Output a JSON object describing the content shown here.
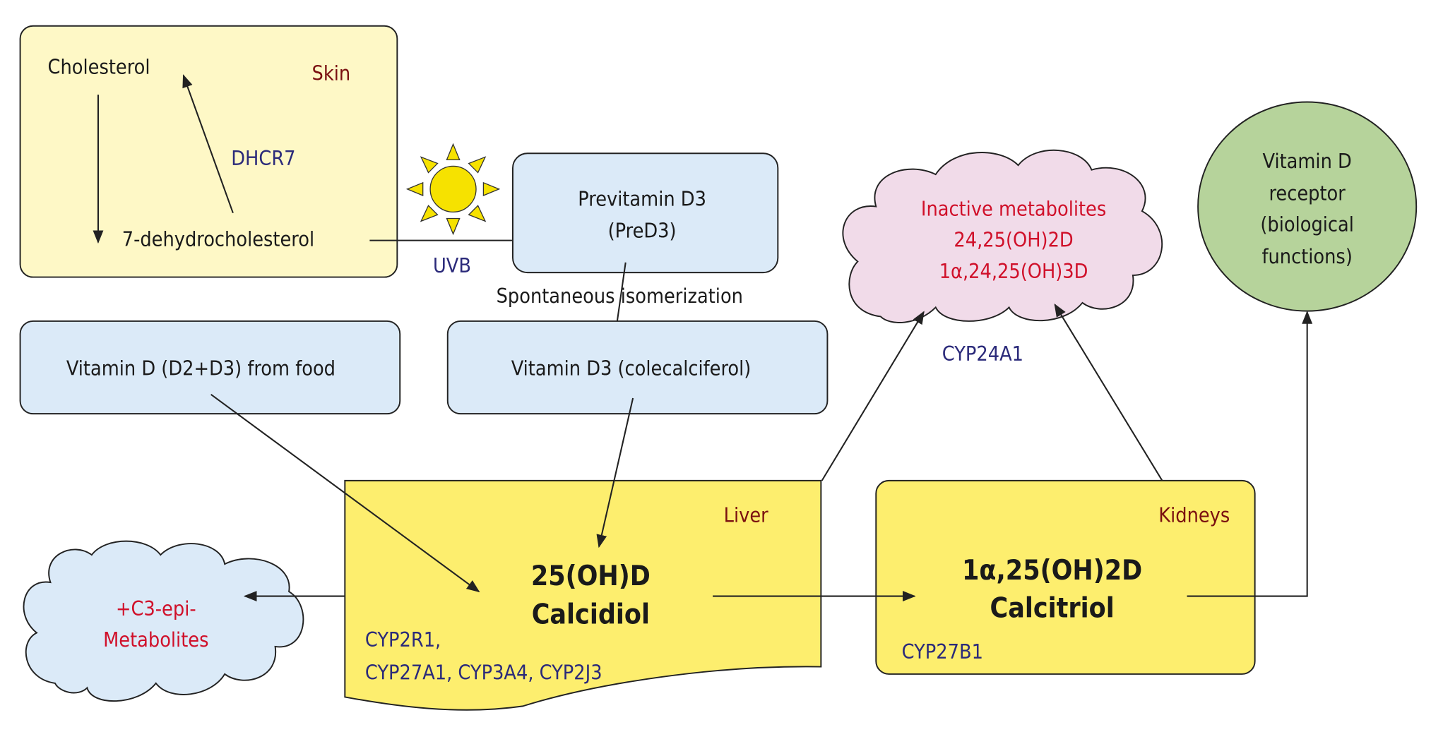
{
  "colors": {
    "skin_box": "#fef8c6",
    "blue_box": "#dbeaf8",
    "yellow_box": "#fdee6e",
    "pink_cloud": "#f1dbe9",
    "green_circle": "#b6d39b",
    "enzyme_text": "#2b2a7a",
    "organ_text": "#7a1010",
    "metabolite_text": "#d0102a",
    "sun": "#f6e200"
  },
  "skin": {
    "label": "Skin",
    "cholesterol": "Cholesterol",
    "dehydro": "7-dehydrocholesterol",
    "enzyme": "DHCR7"
  },
  "uvb": "UVB",
  "previtamin": {
    "line1": "Previtamin D3",
    "line2": "(PreD3)"
  },
  "isomerization": "Spontaneous isomerization",
  "food": "Vitamin D (D2+D3) from food",
  "vitd3": "Vitamin D3 (colecalciferol)",
  "inactive": {
    "line1": "Inactive metabolites",
    "line2": "24,25(OH)2D",
    "line3": "1α,24,25(OH)3D"
  },
  "cyp24": "CYP24A1",
  "receptor": {
    "line1": "Vitamin D",
    "line2": "receptor",
    "line3": "(biological",
    "line4": "functions)"
  },
  "liver": {
    "label": "Liver",
    "line1": "25(OH)D",
    "line2": "Calcidiol",
    "enz1": "CYP2R1,",
    "enz2": "CYP27A1, CYP3A4, CYP2J3"
  },
  "kidneys": {
    "label": "Kidneys",
    "line1": "1α,25(OH)2D",
    "line2": "Calcitriol",
    "enzyme": "CYP27B1"
  },
  "epi": {
    "line1": "+C3-epi-",
    "line2": "Metabolites"
  }
}
